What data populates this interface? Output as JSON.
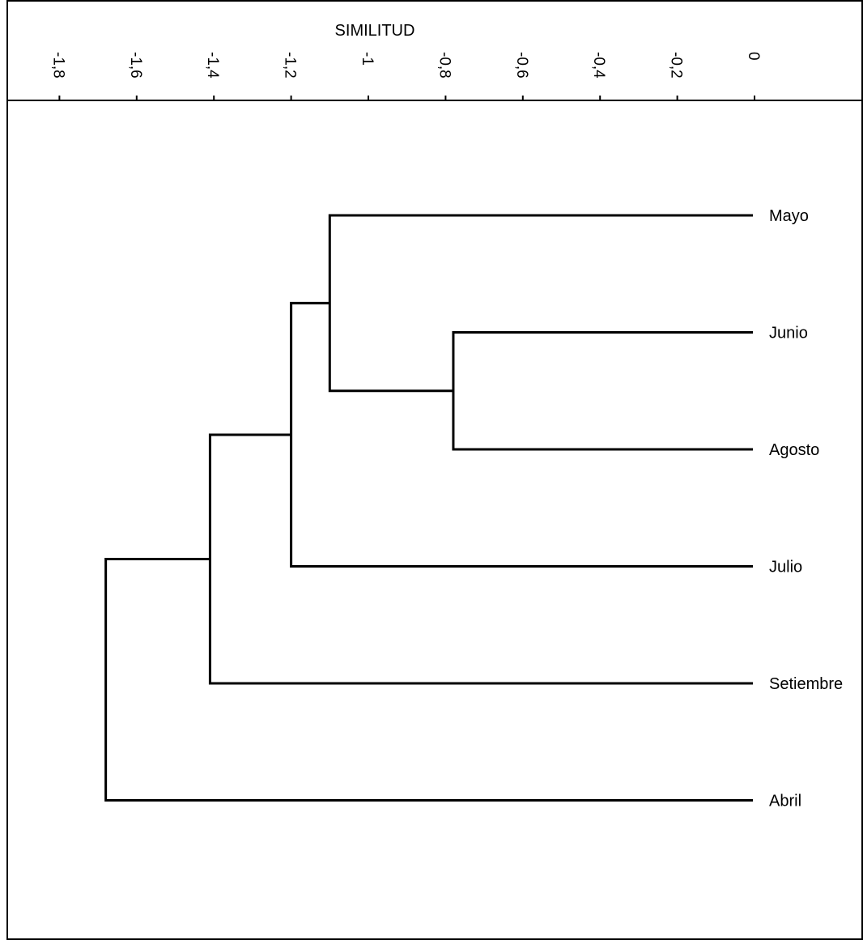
{
  "chart_data": {
    "type": "dendrogram",
    "xlabel": "SIMILITUD",
    "xlim": [
      -1.9,
      0
    ],
    "ticks": [
      {
        "value": -1.8,
        "label": "-1,8"
      },
      {
        "value": -1.6,
        "label": "-1,6"
      },
      {
        "value": -1.4,
        "label": "-1,4"
      },
      {
        "value": -1.2,
        "label": "-1,2"
      },
      {
        "value": -1.0,
        "label": "-1"
      },
      {
        "value": -0.8,
        "label": "-0,8"
      },
      {
        "value": -0.6,
        "label": "-0,6"
      },
      {
        "value": -0.4,
        "label": "-0,4"
      },
      {
        "value": -0.2,
        "label": "-0,2"
      },
      {
        "value": 0.0,
        "label": "0"
      }
    ],
    "leaves": [
      "Mayo",
      "Junio",
      "Agosto",
      "Julio",
      "Setiembre",
      "Abril"
    ],
    "merges": [
      {
        "left": "Junio",
        "right": "Agosto",
        "height": -0.78
      },
      {
        "left": "Mayo",
        "right": "Junio+Agosto",
        "height": -1.1
      },
      {
        "left": "Mayo+Junio+Agosto",
        "right": "Julio",
        "height": -1.2
      },
      {
        "left": "Mayo+Junio+Agosto+Julio",
        "right": "Setiembre",
        "height": -1.41
      },
      {
        "left": "Mayo+Junio+Agosto+Julio+Setiembre",
        "right": "Abril",
        "height": -1.68
      }
    ],
    "grid": false
  }
}
